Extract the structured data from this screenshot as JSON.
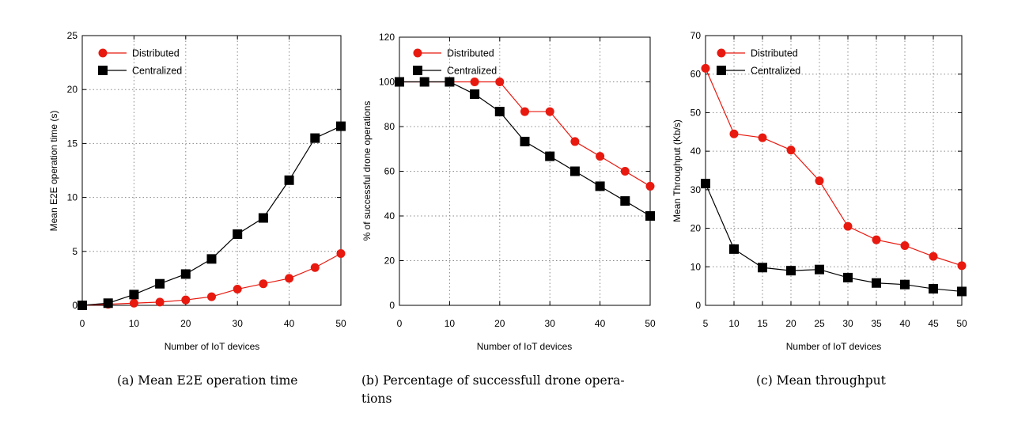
{
  "chart_data": [
    {
      "type": "line",
      "xlabel": "Number of IoT devices",
      "ylabel": "Mean E2E operation time (s)",
      "xlim": [
        0,
        50
      ],
      "ylim": [
        0,
        25
      ],
      "xticks": [
        0,
        10,
        20,
        30,
        40,
        50
      ],
      "yticks": [
        0,
        5,
        10,
        15,
        20,
        25
      ],
      "grid": true,
      "legend_position": "top-left",
      "x": [
        0,
        5,
        10,
        15,
        20,
        25,
        30,
        35,
        40,
        45,
        50
      ],
      "series": [
        {
          "name": "Distributed",
          "color": "#e8190f",
          "marker": "circle",
          "values": [
            0,
            0.1,
            0.2,
            0.3,
            0.5,
            0.8,
            1.5,
            2.0,
            2.5,
            3.5,
            4.8
          ]
        },
        {
          "name": "Centralized",
          "color": "#000000",
          "marker": "square",
          "values": [
            0,
            0.2,
            1.0,
            2.0,
            2.9,
            4.3,
            6.6,
            8.1,
            11.6,
            15.5,
            16.6
          ]
        }
      ],
      "caption": "(a) Mean E2E operation time"
    },
    {
      "type": "line",
      "xlabel": "Number of IoT devices",
      "ylabel": "% of successful drone operations",
      "xlim": [
        0,
        50
      ],
      "ylim": [
        0,
        120
      ],
      "xticks": [
        0,
        10,
        20,
        30,
        40,
        50
      ],
      "yticks": [
        0,
        20,
        40,
        60,
        80,
        100,
        120
      ],
      "grid": true,
      "legend_position": "top-right",
      "x": [
        0,
        5,
        10,
        15,
        20,
        25,
        30,
        35,
        40,
        45,
        50
      ],
      "series": [
        {
          "name": "Distributed",
          "color": "#e8190f",
          "marker": "circle",
          "values": [
            100,
            100,
            100,
            100,
            100,
            86.7,
            86.7,
            73.3,
            66.7,
            60,
            53.3
          ]
        },
        {
          "name": "Centralized",
          "color": "#000000",
          "marker": "square",
          "values": [
            100,
            100,
            100,
            94.5,
            86.7,
            73.3,
            66.7,
            60,
            53.3,
            46.7,
            40
          ]
        }
      ],
      "caption_lines": [
        "(b) Percentage of successfull drone opera-",
        "tions"
      ]
    },
    {
      "type": "line",
      "xlabel": "Number of IoT devices",
      "ylabel": "Mean Throughput (Kb/s)",
      "xlim": [
        5,
        50
      ],
      "ylim": [
        0,
        70
      ],
      "xticks": [
        5,
        10,
        15,
        20,
        25,
        30,
        35,
        40,
        45,
        50
      ],
      "yticks": [
        0,
        10,
        20,
        30,
        40,
        50,
        60,
        70
      ],
      "grid": true,
      "legend_position": "top-left",
      "x": [
        5,
        10,
        15,
        20,
        25,
        30,
        35,
        40,
        45,
        50
      ],
      "series": [
        {
          "name": "Distributed",
          "color": "#e8190f",
          "marker": "circle",
          "values": [
            61.5,
            44.5,
            43.5,
            40.3,
            32.3,
            20.5,
            17,
            15.5,
            12.7,
            10.3
          ]
        },
        {
          "name": "Centralized",
          "color": "#000000",
          "marker": "square",
          "values": [
            31.6,
            14.6,
            9.8,
            9,
            9.3,
            7.2,
            5.8,
            5.4,
            4.3,
            3.6
          ]
        }
      ],
      "caption": "(c) Mean throughput"
    }
  ]
}
